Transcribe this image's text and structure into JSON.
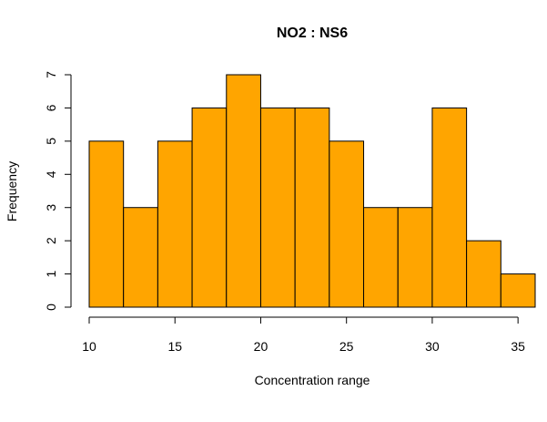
{
  "chart_data": {
    "type": "bar",
    "subtype": "histogram",
    "title": "NO2 : NS6",
    "xlabel": "Concentration range",
    "ylabel": "Frequency",
    "bin_edges": [
      10,
      12,
      14,
      16,
      18,
      20,
      22,
      24,
      26,
      28,
      30,
      32,
      34,
      36
    ],
    "values": [
      5,
      3,
      5,
      6,
      7,
      6,
      6,
      5,
      3,
      3,
      6,
      2,
      1
    ],
    "xticks": [
      10,
      15,
      20,
      25,
      30,
      35
    ],
    "yticks": [
      0,
      1,
      2,
      3,
      4,
      5,
      6,
      7
    ],
    "xlim": [
      10,
      36
    ],
    "ylim": [
      0,
      7
    ],
    "bar_color": "#FFA500",
    "edge_color": "#000000",
    "grid": false,
    "legend": "none"
  }
}
